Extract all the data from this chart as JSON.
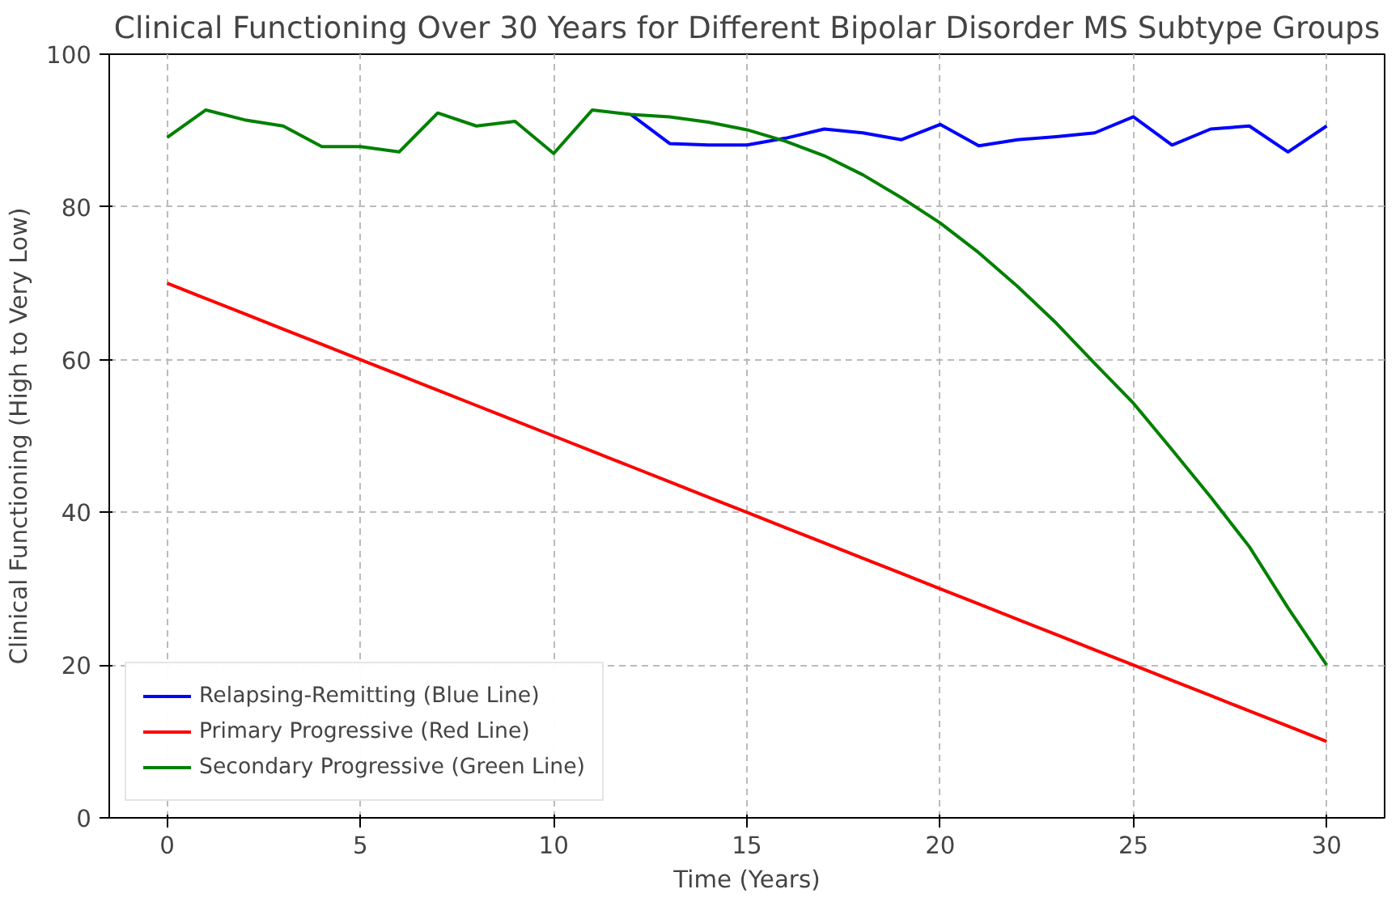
{
  "chart_data": {
    "type": "line",
    "title": "Clinical Functioning Over 30 Years for Different Bipolar Disorder MS Subtype Groups",
    "xlabel": "Time (Years)",
    "ylabel": "Clinical Functioning (High to Very Low)",
    "x": [
      0,
      1,
      2,
      3,
      4,
      5,
      6,
      7,
      8,
      9,
      10,
      11,
      12,
      13,
      14,
      15,
      16,
      17,
      18,
      19,
      20,
      21,
      22,
      23,
      24,
      25,
      26,
      27,
      28,
      29,
      30
    ],
    "xlim": [
      -1.5,
      31.5
    ],
    "ylim": [
      0,
      100
    ],
    "xticks": [
      0,
      5,
      10,
      15,
      20,
      25,
      30
    ],
    "yticks": [
      0,
      20,
      40,
      60,
      80,
      100
    ],
    "grid": true,
    "legend": "bottom left",
    "line_style": "solid",
    "marker": "none",
    "series": [
      {
        "name": "Relapsing-Remitting (Blue Line)",
        "color": "#0000ff",
        "values": [
          null,
          null,
          null,
          null,
          null,
          null,
          null,
          null,
          null,
          null,
          null,
          null,
          92.1,
          88.3,
          88.1,
          88.1,
          89.0,
          90.2,
          89.7,
          88.8,
          90.8,
          88.0,
          88.8,
          89.2,
          89.7,
          91.8,
          88.1,
          90.2,
          90.6,
          87.2,
          90.6
        ]
      },
      {
        "name": "Primary Progressive (Red Line)",
        "color": "#ff0000",
        "values": [
          70,
          68,
          66,
          64,
          62,
          60,
          58,
          56,
          54,
          52,
          50,
          48,
          46,
          44,
          42,
          40,
          38,
          36,
          34,
          32,
          30,
          28,
          26,
          24,
          22,
          20,
          18,
          16,
          14,
          12,
          10
        ]
      },
      {
        "name": "Secondary Progressive (Green Line)",
        "color": "#008000",
        "values": [
          89.1,
          92.7,
          91.4,
          90.6,
          87.9,
          87.9,
          87.2,
          92.3,
          90.6,
          91.2,
          87.0,
          92.7,
          92.1,
          91.8,
          91.1,
          90.1,
          88.6,
          86.7,
          84.2,
          81.2,
          77.9,
          74.0,
          69.6,
          64.8,
          59.5,
          54.3,
          48.2,
          42.0,
          35.5,
          27.5,
          20.0
        ]
      }
    ]
  }
}
